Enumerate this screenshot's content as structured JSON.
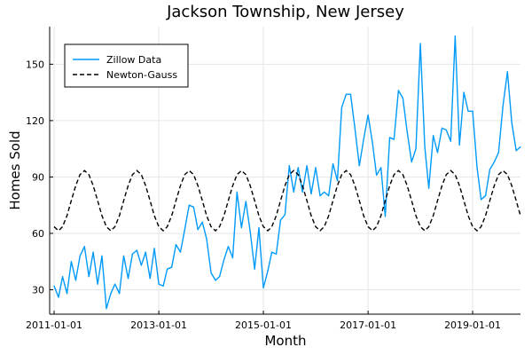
{
  "chart_data": {
    "type": "line",
    "title": "Jackson Township, New Jersey",
    "xlabel": "Month",
    "ylabel": "Homes Sold",
    "xlim": [
      "2010-12-01",
      "2019-12-01"
    ],
    "ylim": [
      17,
      170
    ],
    "x_ticks": [
      "2011-01-01",
      "2013-01-01",
      "2015-01-01",
      "2017-01-01",
      "2019-01-01"
    ],
    "y_ticks": [
      30,
      60,
      90,
      120,
      150
    ],
    "grid": true,
    "legend": "top-left",
    "series": [
      {
        "name": "Zillow Data",
        "style": "solid",
        "color": "#009AF9",
        "x": [
          "2011-01",
          "2011-02",
          "2011-03",
          "2011-04",
          "2011-05",
          "2011-06",
          "2011-07",
          "2011-08",
          "2011-09",
          "2011-10",
          "2011-11",
          "2011-12",
          "2012-01",
          "2012-02",
          "2012-03",
          "2012-04",
          "2012-05",
          "2012-06",
          "2012-07",
          "2012-08",
          "2012-09",
          "2012-10",
          "2012-11",
          "2012-12",
          "2013-01",
          "2013-02",
          "2013-03",
          "2013-04",
          "2013-05",
          "2013-06",
          "2013-07",
          "2013-08",
          "2013-09",
          "2013-10",
          "2013-11",
          "2013-12",
          "2014-01",
          "2014-02",
          "2014-03",
          "2014-04",
          "2014-05",
          "2014-06",
          "2014-07",
          "2014-08",
          "2014-09",
          "2014-10",
          "2014-11",
          "2014-12",
          "2015-01",
          "2015-02",
          "2015-03",
          "2015-04",
          "2015-05",
          "2015-06",
          "2015-07",
          "2015-08",
          "2015-09",
          "2015-10",
          "2015-11",
          "2015-12",
          "2016-01",
          "2016-02",
          "2016-03",
          "2016-04",
          "2016-05",
          "2016-06",
          "2016-07",
          "2016-08",
          "2016-09",
          "2016-10",
          "2016-11",
          "2016-12",
          "2017-01",
          "2017-02",
          "2017-03",
          "2017-04",
          "2017-05",
          "2017-06",
          "2017-07",
          "2017-08",
          "2017-09",
          "2017-10",
          "2017-11",
          "2017-12",
          "2018-01",
          "2018-02",
          "2018-03",
          "2018-04",
          "2018-05",
          "2018-06",
          "2018-07",
          "2018-08",
          "2018-09",
          "2018-10",
          "2018-11",
          "2018-12",
          "2019-01",
          "2019-02",
          "2019-03",
          "2019-04",
          "2019-05",
          "2019-06",
          "2019-07",
          "2019-08",
          "2019-09",
          "2019-10",
          "2019-11",
          "2019-12"
        ],
        "values": [
          32,
          26,
          37,
          28,
          45,
          35,
          48,
          53,
          37,
          50,
          33,
          48,
          20,
          28,
          33,
          28,
          48,
          36,
          49,
          51,
          43,
          50,
          36,
          52,
          33,
          32,
          41,
          42,
          54,
          50,
          62,
          75,
          74,
          62,
          66,
          57,
          39,
          35,
          37,
          46,
          53,
          47,
          82,
          63,
          77,
          61,
          41,
          63,
          31,
          40,
          50,
          49,
          67,
          70,
          96,
          82,
          95,
          82,
          96,
          81,
          95,
          80,
          82,
          80,
          97,
          88,
          127,
          134,
          134,
          116,
          96,
          110,
          123,
          108,
          91,
          95,
          69,
          111,
          110,
          136,
          132,
          114,
          98,
          105,
          161,
          106,
          84,
          112,
          103,
          116,
          115,
          109,
          165,
          107,
          135,
          125,
          125,
          95,
          78,
          80,
          94,
          98,
          103,
          128,
          146,
          119,
          104,
          106
        ]
      },
      {
        "name": "Newton-Gauss",
        "style": "dashed",
        "color": "#000000",
        "model": "sinusoid",
        "mean": 77.4,
        "amplitude": 16,
        "period_months": 12,
        "peak_month": "August"
      }
    ]
  }
}
